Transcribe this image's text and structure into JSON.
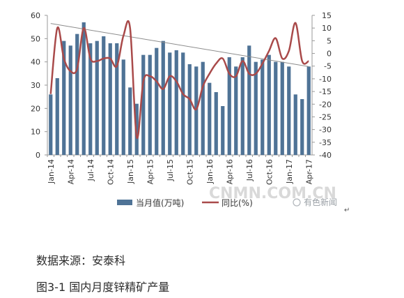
{
  "chart_data": {
    "type": "bar",
    "categories": [
      "Jan-14",
      "Feb-14",
      "Mar-14",
      "Apr-14",
      "May-14",
      "Jun-14",
      "Jul-14",
      "Aug-14",
      "Sep-14",
      "Oct-14",
      "Nov-14",
      "Dec-14",
      "Jan-15",
      "Feb-15",
      "Mar-15",
      "Apr-15",
      "May-15",
      "Jun-15",
      "Jul-15",
      "Aug-15",
      "Sep-15",
      "Oct-15",
      "Nov-15",
      "Dec-15",
      "Jan-16",
      "Feb-16",
      "Mar-16",
      "Apr-16",
      "May-16",
      "Jun-16",
      "Jul-16",
      "Aug-16",
      "Sep-16",
      "Oct-16",
      "Nov-16",
      "Dec-16",
      "Jan-17",
      "Feb-17",
      "Mar-17",
      "Apr-17"
    ],
    "x_tick_labels": [
      "Jan-14",
      "Apr-14",
      "Jul-14",
      "Oct-14",
      "Jan-15",
      "Apr-15",
      "Jul-15",
      "Oct-15",
      "Jan-16",
      "Apr-16",
      "Jul-16",
      "Oct-16",
      "Jan-17",
      "Apr-17"
    ],
    "series": [
      {
        "name": "当月值(万吨)",
        "axis": "left",
        "type": "bar",
        "color": "#4f7396",
        "values": [
          26,
          33,
          49,
          47,
          52,
          57,
          48,
          49,
          51,
          48,
          48,
          41,
          29,
          22,
          43,
          43,
          46,
          49,
          44,
          45,
          44,
          39,
          38,
          40,
          31,
          27,
          21,
          42,
          38,
          42,
          47,
          40,
          41,
          43,
          40,
          40,
          38,
          26,
          24,
          38
        ]
      },
      {
        "name": "同比(%)",
        "axis": "right",
        "type": "line",
        "color": "#a94a4a",
        "values": [
          -16,
          10,
          -2,
          -7,
          -6,
          10,
          -2,
          -3,
          -2,
          -2,
          -5,
          7,
          10,
          -33,
          -11,
          -9,
          -11,
          -14,
          -9,
          -11,
          -16,
          -18,
          -22,
          -13,
          -8,
          -4,
          -2,
          -8,
          -9,
          -3,
          -8,
          -8,
          -4,
          1,
          6,
          -2,
          1,
          12,
          -3,
          -3
        ]
      }
    ],
    "trendline": {
      "start": 56.5,
      "end": 38
    },
    "ylim_left": [
      0,
      60
    ],
    "yticks_left": [
      0,
      10,
      20,
      30,
      40,
      50,
      60
    ],
    "ylim_right": [
      -40,
      15
    ],
    "yticks_right": [
      15,
      10,
      5,
      0,
      -5,
      -10,
      -15,
      -20,
      -25,
      -30,
      -35,
      -40
    ],
    "legend_position": "bottom"
  },
  "legend": {
    "bar_label": "当月值(万吨)",
    "line_label": "同比(%)"
  },
  "watermark": {
    "site": "CNMN.COM.CN",
    "brand": "有色新闻"
  },
  "source_text": "数据来源：安泰科",
  "caption_text": "图3-1 国内月度锌精矿产量",
  "return_mark": "↵"
}
